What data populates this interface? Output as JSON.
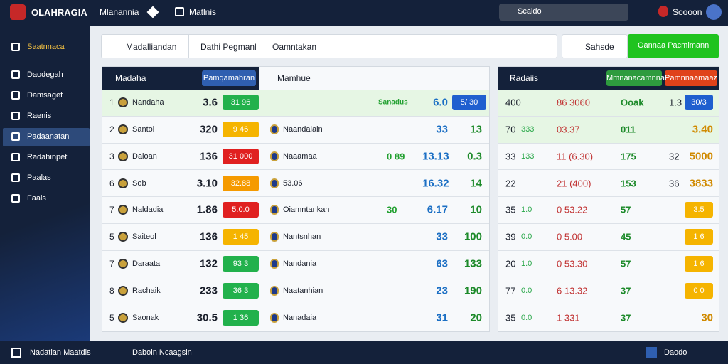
{
  "header": {
    "logo": "OLAHRAGIA",
    "nav": [
      "Mlanannia",
      "Matlnis"
    ],
    "search": "Scaldo",
    "user": "Soooon"
  },
  "sidebar": {
    "items": [
      "Saatnnaca",
      "Daodegah",
      "Damsaget",
      "Raenis",
      "Padaanatan",
      "Radahinpet",
      "Paalas",
      "Faals"
    ],
    "active": 4
  },
  "toolbar": {
    "filters": [
      "Madalliandan",
      "Dathi Pegmanl",
      "Oamntakan"
    ],
    "secondary": "Sahsde",
    "primary": "Oannaa Pacmlmann"
  },
  "left_panel": {
    "title": "Madaha",
    "button": "Pamqamahran",
    "subtitle": "Mamhue",
    "rows": [
      {
        "rank": "1",
        "team": "Nandaha",
        "score": "3.6",
        "badge": "31 96",
        "badge_color": "#22b14c",
        "extra": "Sanadus",
        "v1": "6.0",
        "v2": "5/ 30"
      },
      {
        "rank": "2",
        "team": "Santol",
        "score": "320",
        "badge": "9 46",
        "badge_color": "#f5b400",
        "opponent": "Naandalain",
        "v1": "33",
        "v2": "13"
      },
      {
        "rank": "3",
        "team": "Daloan",
        "score": "136",
        "badge": "31 000",
        "badge_color": "#e02020",
        "opponent": "Naaamaa",
        "extra": "0 89",
        "v1": "13.13",
        "v2": "0.3"
      },
      {
        "rank": "6",
        "team": "Sob",
        "score": "3.10",
        "badge": "32.88",
        "badge_color": "#f59a00",
        "opponent": "53.06",
        "v1": "16.32",
        "v2": "14"
      },
      {
        "rank": "7",
        "team": "Naldadia",
        "score": "1.86",
        "badge": "5.0.0",
        "badge_color": "#e02020",
        "opponent": "Oiamntankan",
        "extra": "30",
        "v1": "6.17",
        "v2": "10"
      },
      {
        "rank": "5",
        "team": "Saiteol",
        "score": "136",
        "badge": "1 45",
        "badge_color": "#f5b400",
        "opponent": "Nantsnhan",
        "v1": "33",
        "v2": "100"
      },
      {
        "rank": "7",
        "team": "Daraata",
        "score": "132",
        "badge": "93 3",
        "badge_color": "#22b14c",
        "opponent": "Nandania",
        "v1": "63",
        "v2": "133"
      },
      {
        "rank": "8",
        "team": "Rachaik",
        "score": "233",
        "badge": "36 3",
        "badge_color": "#22b14c",
        "opponent": "Naatanhian",
        "v1": "23",
        "v2": "190"
      },
      {
        "rank": "5",
        "team": "Saonak",
        "score": "30.5",
        "badge": "1 36",
        "badge_color": "#22b14c",
        "opponent": "Nanadaia",
        "v1": "31",
        "v2": "20"
      }
    ]
  },
  "right_panel": {
    "title": "Radaiis",
    "buttons": [
      "Mmnanacamnnan",
      "Pamnnaamaaz"
    ],
    "rows": [
      {
        "a": "400",
        "c": "86 3060",
        "d": "Ooak",
        "e": "1.3",
        "badge": "30/3",
        "badge_color": "#1f5fcf"
      },
      {
        "a": "70",
        "b": "333",
        "c": "03.37",
        "d": "011",
        "badge": "3.40"
      },
      {
        "a": "33",
        "b": "133",
        "c": "11 (6.30)",
        "d": "175",
        "e": "32",
        "badge": "5000"
      },
      {
        "a": "22",
        "c": "21 (400)",
        "d": "153",
        "e": "36",
        "badge": "3833"
      },
      {
        "a": "35",
        "b": "1.0",
        "c": "0 53.22",
        "d": "57",
        "badge": "3.5",
        "badge_color": "#f5b400"
      },
      {
        "a": "39",
        "b": "0.0",
        "c": "0 5.00",
        "d": "45",
        "badge": "1 6",
        "badge_color": "#f5b400"
      },
      {
        "a": "20",
        "b": "1.0",
        "c": "0 53.30",
        "d": "57",
        "badge": "1 6",
        "badge_color": "#f5b400"
      },
      {
        "a": "77",
        "b": "0.0",
        "c": "6 13.32",
        "d": "37",
        "badge": "0 0",
        "badge_color": "#f5b400"
      },
      {
        "a": "35",
        "b": "0.0",
        "c": "1 331",
        "d": "37",
        "badge": "30"
      }
    ]
  },
  "footer": {
    "left": "Nadatian Maatdls",
    "center": "Daboin Ncaagsin",
    "right": "Daodo"
  }
}
